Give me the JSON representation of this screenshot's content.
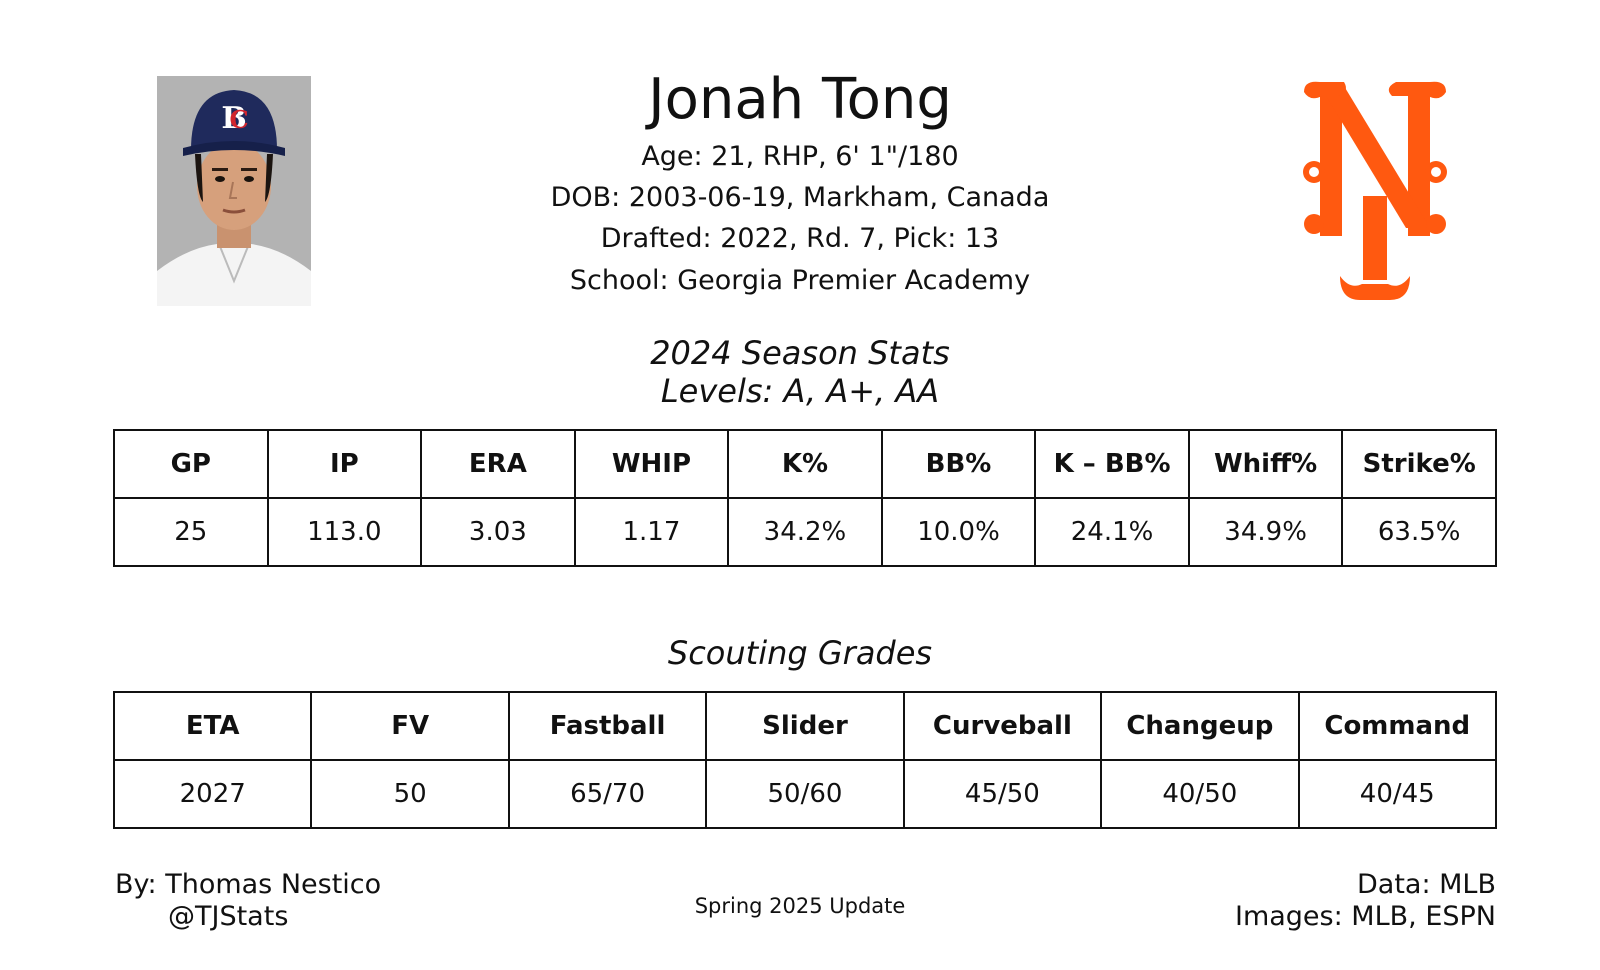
{
  "player": {
    "name": "Jonah Tong",
    "info_lines": [
      "Age: 21, RHP, 6' 1\"/180",
      "DOB: 2003-06-19, Markham, Canada",
      "Drafted: 2022, Rd. 7, Pick: 13",
      "School: Georgia Premier Academy"
    ]
  },
  "season_stats": {
    "title": "2024 Season Stats",
    "subtitle": "Levels: A, A+, AA",
    "headers": [
      "GP",
      "IP",
      "ERA",
      "WHIP",
      "K%",
      "BB%",
      "K – BB%",
      "Whiff%",
      "Strike%"
    ],
    "values": [
      "25",
      "113.0",
      "3.03",
      "1.17",
      "34.2%",
      "10.0%",
      "24.1%",
      "34.9%",
      "63.5%"
    ]
  },
  "scouting": {
    "title": "Scouting Grades",
    "headers": [
      "ETA",
      "FV",
      "Fastball",
      "Slider",
      "Curveball",
      "Changeup",
      "Command"
    ],
    "values": [
      "2027",
      "50",
      "65/70",
      "50/60",
      "45/50",
      "40/50",
      "40/45"
    ]
  },
  "footer": {
    "byline": "By: Thomas Nestico",
    "handle": "@TJStats",
    "update": "Spring 2025 Update",
    "data_credit": "Data: MLB",
    "images_credit": "Images: MLB, ESPN"
  },
  "colors": {
    "team_orange": "#ff5910",
    "cap_navy": "#1f2a5c",
    "photo_bg": "#b3b3b3"
  },
  "icons": {
    "photo": "player-headshot",
    "logo": "ny-team-logo"
  }
}
